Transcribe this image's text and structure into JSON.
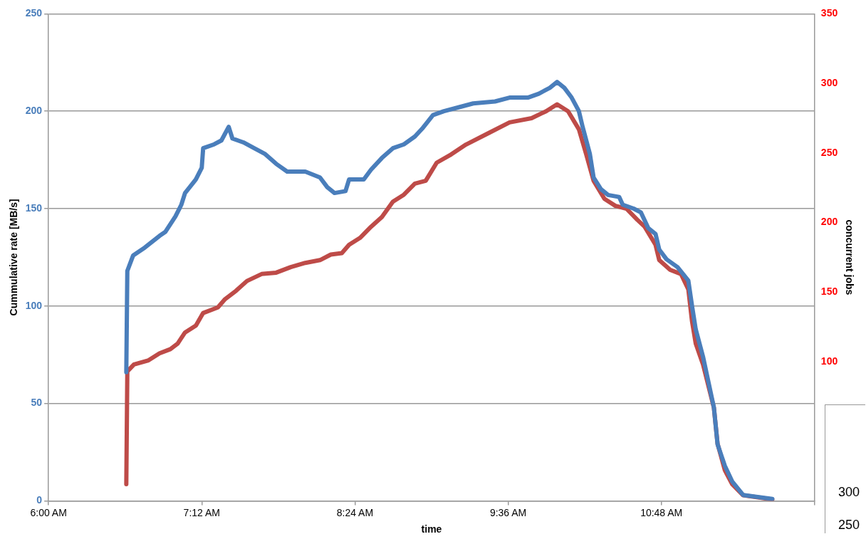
{
  "chart_data": {
    "type": "line",
    "xlabel": "time",
    "ylabel": "Cummulative rate [MB/s]",
    "y2label": "concurrent jobs",
    "grid": "y",
    "legend": false,
    "marker": "none",
    "line_style": "solid",
    "xlim": [
      6,
      12
    ],
    "xticks": [
      {
        "value": 6,
        "label": "6:00 AM"
      },
      {
        "value": 7.2,
        "label": "7:12 AM"
      },
      {
        "value": 8.4,
        "label": "8:24 AM"
      },
      {
        "value": 9.6,
        "label": "9:36 AM"
      },
      {
        "value": 10.8,
        "label": "10:48 AM"
      },
      {
        "value": 12,
        "label": null
      }
    ],
    "ylim": [
      0,
      250
    ],
    "yticks": [
      0,
      50,
      100,
      150,
      200,
      250
    ],
    "y2lim": [
      0,
      350
    ],
    "y2ticks": [
      100,
      150,
      200,
      250,
      300,
      350
    ],
    "annotations": [
      "300",
      "250"
    ],
    "series": [
      {
        "color": "#4a7ebb",
        "x": [
          6.609,
          6.617,
          6.663,
          6.754,
          6.869,
          6.914,
          6.994,
          7.04,
          7.069,
          7.154,
          7.2,
          7.211,
          7.297,
          7.354,
          7.411,
          7.44,
          7.526,
          7.611,
          7.697,
          7.783,
          7.869,
          8.011,
          8.126,
          8.183,
          8.24,
          8.326,
          8.354,
          8.469,
          8.526,
          8.611,
          8.697,
          8.783,
          8.869,
          8.926,
          9.011,
          9.097,
          9.211,
          9.326,
          9.497,
          9.611,
          9.754,
          9.84,
          9.926,
          9.983,
          10.04,
          10.097,
          10.154,
          10.183,
          10.24,
          10.269,
          10.326,
          10.383,
          10.469,
          10.497,
          10.583,
          10.64,
          10.697,
          10.754,
          10.783,
          10.84,
          10.926,
          11.011,
          11.04,
          11.069,
          11.126,
          11.211,
          11.24,
          11.297,
          11.354,
          11.44,
          11.669
        ],
        "values": [
          66,
          118,
          126,
          130,
          136,
          138,
          146,
          152,
          158,
          165,
          171,
          181,
          183,
          185,
          192,
          186,
          184,
          181,
          178,
          173,
          169,
          169,
          166,
          161,
          158,
          159,
          165,
          165,
          170,
          176,
          181,
          183,
          187,
          191,
          198,
          200,
          202,
          204,
          205,
          207,
          207,
          209,
          212,
          215,
          212,
          207,
          200,
          192,
          178,
          166,
          160,
          157,
          156,
          152,
          150,
          148,
          140,
          137,
          129,
          124,
          120,
          113,
          100,
          88,
          74,
          48,
          29,
          18,
          10,
          3,
          1
        ]
      },
      {
        "color": "#be4b48",
        "axis": "y2",
        "x": [
          6.609,
          6.617,
          6.669,
          6.783,
          6.869,
          6.954,
          7.011,
          7.069,
          7.154,
          7.211,
          7.326,
          7.383,
          7.469,
          7.554,
          7.669,
          7.783,
          7.897,
          8.011,
          8.126,
          8.211,
          8.297,
          8.354,
          8.44,
          8.526,
          8.611,
          8.697,
          8.783,
          8.869,
          8.954,
          9.04,
          9.154,
          9.269,
          9.44,
          9.611,
          9.783,
          9.897,
          9.983,
          10.069,
          10.154,
          10.211,
          10.269,
          10.354,
          10.44,
          10.526,
          10.611,
          10.669,
          10.754,
          10.783,
          10.869,
          10.954,
          11.011,
          11.04,
          11.069,
          11.126,
          11.211,
          11.24,
          11.297,
          11.354,
          11.44,
          11.669
        ],
        "values": [
          12,
          93,
          98,
          101,
          106,
          109,
          113,
          121,
          126,
          135,
          139,
          145,
          151,
          158,
          163,
          164,
          168,
          171,
          173,
          177,
          178,
          184,
          189,
          197,
          204,
          215,
          220,
          228,
          230,
          243,
          249,
          256,
          264,
          272,
          275,
          280,
          285,
          280,
          267,
          249,
          230,
          217,
          212,
          210,
          202,
          197,
          184,
          173,
          166,
          163,
          152,
          129,
          113,
          98,
          67,
          41,
          22,
          12,
          4,
          1
        ]
      }
    ]
  }
}
